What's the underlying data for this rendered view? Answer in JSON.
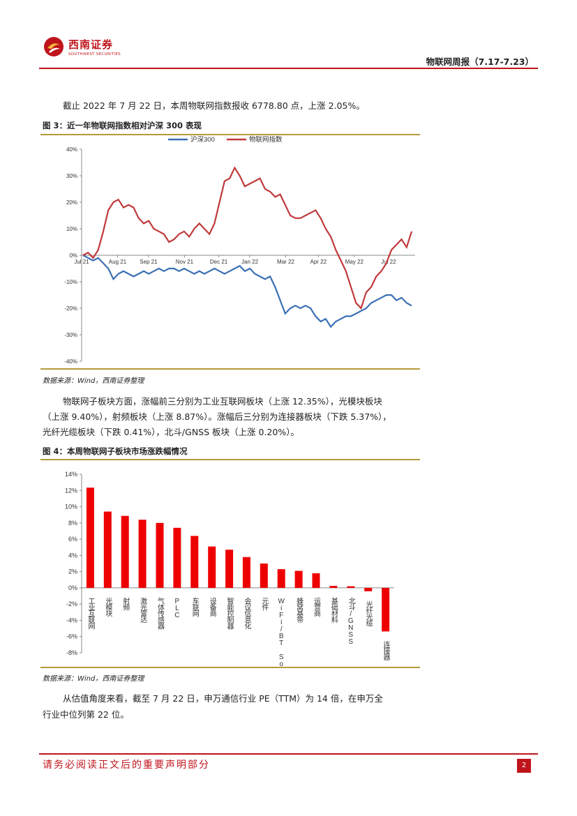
{
  "header": {
    "logo_cn": "西南证券",
    "logo_en": "SOUTHWEST SECURITIES",
    "report_title": "物联网周报（7.17-7.23）"
  },
  "paragraphs": {
    "p1": "截止 2022 年 7 月 22 日，本周物联网指数报收 6778.80 点，上涨 2.05%。",
    "p2_line1": "物联网子板块方面，涨幅前三分别为工业互联网板块（上涨 12.35%），光模块板块",
    "p2_line2": "（上涨 9.40%），射频板块（上涨 8.87%）。涨幅后三分别为连接器板块（下跌 5.37%），",
    "p2_line3": "光纤光缆板块（下跌 0.41%），北斗/GNSS 板块（上涨 0.20%）。",
    "p3_line1": "从估值角度来看，截至 7 月 22 日，申万通信行业 PE（TTM）为 14 倍，在申万全",
    "p3_line2": "行业中位列第 22 位。"
  },
  "figure3": {
    "title": "图 3：近一年物联网指数相对沪深 300 表现",
    "source": "数据来源：Wind，西南证券整理"
  },
  "figure4": {
    "title": "图 4：本周物联网子板块市场涨跌幅情况",
    "source": "数据来源：Wind，西南证券整理"
  },
  "footer": {
    "disclaimer": "请务必阅读正文后的重要声明部分",
    "page": "2"
  },
  "colors": {
    "brand_red": "#c0141c",
    "series_hs300": "#3a6fb5",
    "series_iot": "#c0393b",
    "bar_red": "#ee0000"
  },
  "chart_data": [
    {
      "type": "line",
      "x_ticks": [
        "Jul 21",
        "Aug 21",
        "Sep 21",
        "Nov 21",
        "Dec 21",
        "Jan 22",
        "Mar 22",
        "Apr 22",
        "May 22",
        "Jul 22"
      ],
      "y_ticks": [
        "40%",
        "30%",
        "20%",
        "10%",
        "0%",
        "-10%",
        "-20%",
        "-30%",
        "-40%"
      ],
      "ylim": [
        -40,
        40
      ],
      "legend_position": "top-center",
      "series": [
        {
          "name": "沪深300",
          "color": "#3a6fb5",
          "values": [
            0,
            -1,
            -2,
            -1,
            -3,
            -5,
            -9,
            -7,
            -6,
            -7,
            -8,
            -7,
            -6,
            -7,
            -6,
            -5,
            -6,
            -5,
            -5,
            -6,
            -5,
            -6,
            -7,
            -6,
            -7,
            -6,
            -5,
            -6,
            -7,
            -6,
            -5,
            -4,
            -6,
            -5,
            -7,
            -8,
            -9,
            -8,
            -12,
            -17,
            -22,
            -20,
            -19,
            -20,
            -19,
            -20,
            -23,
            -25,
            -24,
            -27,
            -25,
            -24,
            -23,
            -23,
            -22,
            -21,
            -20,
            -18,
            -17,
            -16,
            -15,
            -15,
            -17,
            -16,
            -18,
            -19
          ]
        },
        {
          "name": "物联网指数",
          "color": "#c0393b",
          "values": [
            0,
            1,
            -1,
            2,
            9,
            17,
            20,
            21,
            18,
            19,
            18,
            14,
            12,
            13,
            10,
            9,
            8,
            5,
            6,
            8,
            9,
            7,
            10,
            12,
            10,
            8,
            12,
            20,
            28,
            29,
            33,
            30,
            26,
            27,
            28,
            29,
            25,
            24,
            22,
            23,
            19,
            15,
            14,
            14,
            15,
            16,
            17,
            14,
            10,
            7,
            2,
            -2,
            -6,
            -12,
            -18,
            -20,
            -14,
            -12,
            -8,
            -6,
            -3,
            2,
            4,
            6,
            3,
            9
          ]
        }
      ]
    },
    {
      "type": "bar",
      "categories": [
        "工业互联网",
        "光模块",
        "射频",
        "激光雷达",
        "气体传感器",
        "PLC",
        "车联网",
        "设备商",
        "智能控制器",
        "会议信息化",
        "元件",
        "WiFi/BT SoC",
        "蜂窝基带",
        "运营商",
        "基础材料",
        "北斗/GNSS",
        "光纤光缆",
        "连接器"
      ],
      "values": [
        12.35,
        9.4,
        8.87,
        8.4,
        8.0,
        7.4,
        6.4,
        5.1,
        4.7,
        3.8,
        3.0,
        2.3,
        2.1,
        1.8,
        0.25,
        0.2,
        -0.41,
        -5.37
      ],
      "y_ticks": [
        "14%",
        "12%",
        "10%",
        "8%",
        "6%",
        "4%",
        "2%",
        "0%",
        "-2%",
        "-4%",
        "-6%",
        "-8%"
      ],
      "ylim": [
        -8,
        14
      ]
    }
  ]
}
